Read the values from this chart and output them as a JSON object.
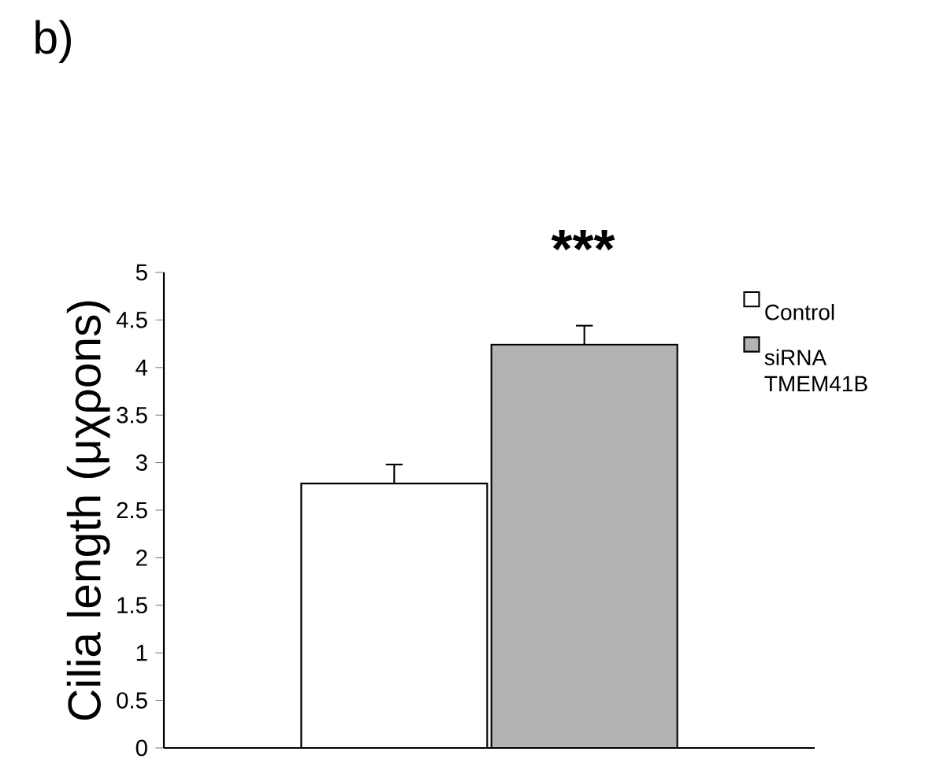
{
  "chart_data": {
    "type": "bar",
    "ylabel": "Cilia length (μχρons)",
    "annotations": [
      "b)",
      "***"
    ],
    "categories": [
      null
    ],
    "series": [
      {
        "name": "Control",
        "color": "#ffffff",
        "values": [
          2.78
        ],
        "errors": [
          0.2
        ]
      },
      {
        "name": "siRNA TMEM41B",
        "color": "#b3b3b3",
        "values": [
          4.24
        ],
        "errors": [
          0.2
        ]
      }
    ],
    "ylim": [
      0,
      5
    ],
    "yticks": [
      0,
      0.5,
      1,
      1.5,
      2,
      2.5,
      3,
      3.5,
      4,
      4.5,
      5
    ],
    "legend": "right"
  }
}
